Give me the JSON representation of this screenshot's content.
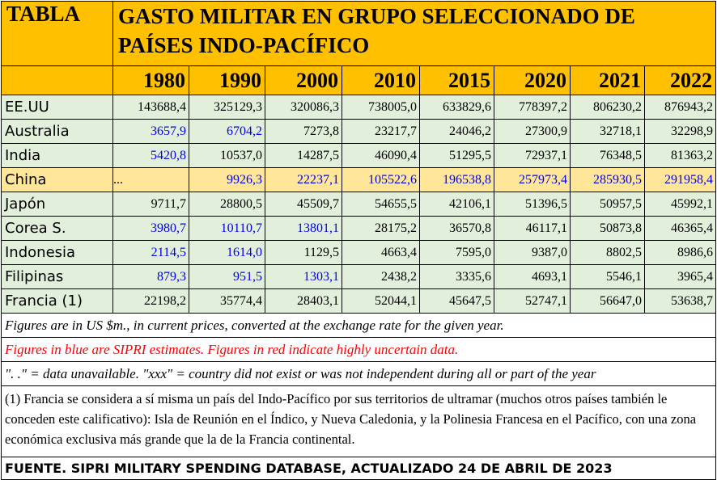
{
  "header": {
    "label": "TABLA",
    "title": "GASTO MILITAR EN GRUPO SELECCIONADO DE PAÍSES INDO-PACÍFICO"
  },
  "years": [
    "1980",
    "1990",
    "2000",
    "2010",
    "2015",
    "2020",
    "2021",
    "2022"
  ],
  "rows": [
    {
      "name": "EE.UU",
      "values": [
        "143688,4",
        "325129,3",
        "320086,3",
        "738005,0",
        "633829,6",
        "778397,2",
        "806230,2",
        "876943,2"
      ],
      "estimate": [
        false,
        false,
        false,
        false,
        false,
        false,
        false,
        false
      ],
      "highlight": false
    },
    {
      "name": "Australia",
      "values": [
        "3657,9",
        "6704,2",
        "7273,8",
        "23217,7",
        "24046,2",
        "27300,9",
        "32718,1",
        "32298,9"
      ],
      "estimate": [
        true,
        true,
        false,
        false,
        false,
        false,
        false,
        false
      ],
      "highlight": false
    },
    {
      "name": "India",
      "values": [
        "5420,8",
        "10537,0",
        "14287,5",
        "46090,4",
        "51295,5",
        "72937,1",
        "76348,5",
        "81363,2"
      ],
      "estimate": [
        true,
        false,
        false,
        false,
        false,
        false,
        false,
        false
      ],
      "highlight": false
    },
    {
      "name": "China",
      "values": [
        "...",
        "9926,3",
        "22237,1",
        "105522,6",
        "196538,8",
        "257973,4",
        "285930,5",
        "291958,4"
      ],
      "estimate": [
        false,
        true,
        true,
        true,
        true,
        true,
        true,
        true
      ],
      "highlight": true
    },
    {
      "name": "Japón",
      "values": [
        "9711,7",
        "28800,5",
        "45509,7",
        "54655,5",
        "42106,1",
        "51396,5",
        "50957,5",
        "45992,1"
      ],
      "estimate": [
        false,
        false,
        false,
        false,
        false,
        false,
        false,
        false
      ],
      "highlight": false
    },
    {
      "name": "Corea S.",
      "values": [
        "3980,7",
        "10110,7",
        "13801,1",
        "28175,2",
        "36570,8",
        "46117,1",
        "50873,8",
        "46365,4"
      ],
      "estimate": [
        true,
        true,
        true,
        false,
        false,
        false,
        false,
        false
      ],
      "highlight": false
    },
    {
      "name": "Indonesia",
      "values": [
        "2114,5",
        "1614,0",
        "1129,5",
        "4663,4",
        "7595,0",
        "9387,0",
        "8802,5",
        "8986,6"
      ],
      "estimate": [
        true,
        true,
        false,
        false,
        false,
        false,
        false,
        false
      ],
      "highlight": false
    },
    {
      "name": "Filipinas",
      "values": [
        "879,3",
        "951,5",
        "1303,1",
        "2438,2",
        "3335,6",
        "4693,1",
        "5546,1",
        "3965,4"
      ],
      "estimate": [
        true,
        true,
        true,
        false,
        false,
        false,
        false,
        false
      ],
      "highlight": false
    },
    {
      "name": "Francia (1)",
      "values": [
        "22198,2",
        "35774,4",
        "28403,1",
        "52044,1",
        "45647,5",
        "52747,1",
        "56647,0",
        "53638,7"
      ],
      "estimate": [
        false,
        false,
        false,
        false,
        false,
        false,
        false,
        false
      ],
      "highlight": false
    }
  ],
  "notes": {
    "units": "Figures are in US $m., in current prices, converted at the exchange rate for the given year.",
    "color_key": "Figures in blue are SIPRI estimates. Figures in red indicate highly uncertain data.",
    "symbols": "\". .\" = data unavailable. \"xxx\" = country did not exist or was not independent during all or part of the year",
    "footnote": "(1) Francia se considera a sí misma un país del Indo-Pacífico por sus territorios de ultramar (muchos otros países también le conceden este calificativo): Isla de Reunión en el Índico, y Nueva Caledonia, y la Polinesia Francesa en el Pacífico, con una zona económica exclusiva más grande que la de la Francia continental.",
    "source": "FUENTE. SIPRI MILITARY SPENDING DATABASE, ACTUALIZADO 24 DE ABRIL DE 2023"
  },
  "colors": {
    "header_bg": "#ffc000",
    "row_bg": "#e2efda",
    "highlight_bg": "#ffe699",
    "estimate_text": "#0000ee",
    "uncertain_text": "#ff0000"
  }
}
